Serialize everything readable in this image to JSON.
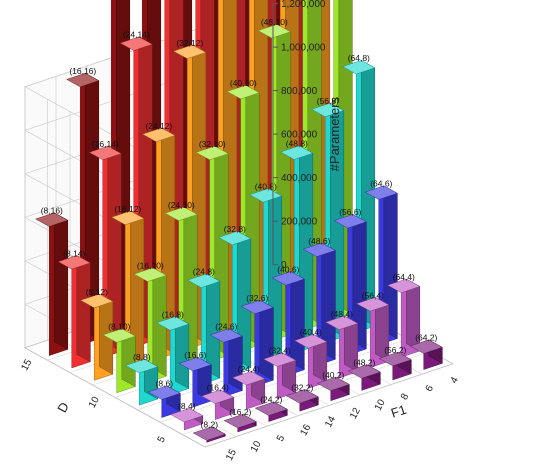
{
  "chart_data": {
    "type": "bar3d",
    "z_axis": {
      "label": "#Parameters",
      "ticks": [
        "0",
        "200,000",
        "400,000",
        "600,000",
        "800,000",
        "1,000,000",
        "1,200,000"
      ],
      "range": [
        0,
        1200000
      ]
    },
    "x_axis": {
      "label": "F1",
      "ticks": [
        "4",
        "6",
        "8",
        "10",
        "12",
        "14",
        "16",
        "5",
        "10",
        "15"
      ]
    },
    "y_axis": {
      "label": "D",
      "ticks": [
        "5",
        "10",
        "15"
      ]
    },
    "depth_values": [
      8,
      16,
      24,
      32,
      40,
      48,
      56,
      64
    ],
    "width_values": [
      2,
      4,
      6,
      8,
      10,
      12,
      14,
      16
    ],
    "param_scale": 290,
    "colors": [
      "#7a1a7a",
      "#c05bc6",
      "#3a3ae0",
      "#20d8d0",
      "#9ee82a",
      "#ffa020",
      "#f03030",
      "#8c1010"
    ]
  }
}
